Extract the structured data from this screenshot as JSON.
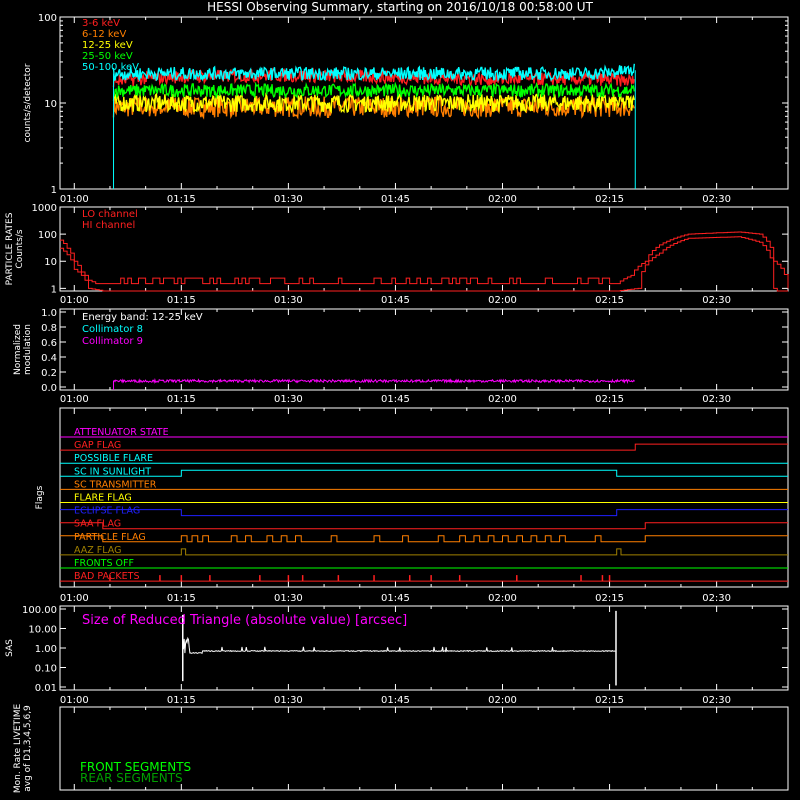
{
  "title": "HESSI Observing Summary, starting on 2016/10/18 00:58:00 UT",
  "time_ticks": [
    "01:00",
    "01:15",
    "01:30",
    "01:45",
    "02:00",
    "02:15",
    "02:30"
  ],
  "colors": {
    "background": "#000000",
    "axes": "#ffffff",
    "e3_6": "#ff2020",
    "e6_12": "#ff7f00",
    "e12_25": "#ffff00",
    "e25_50": "#00ff00",
    "e50_100": "#00ffff",
    "lo_channel": "#ff2020",
    "hi_channel": "#ff2020",
    "coll8": "#00ffff",
    "coll9": "#ff00ff",
    "sas": "#ffffff",
    "front": "#00ff00",
    "rear": "#00a000"
  },
  "panels": {
    "counts": {
      "ylabel": "counts/s/detector",
      "yticks": [
        "1",
        "10",
        "100"
      ],
      "legend": [
        "3-6 keV",
        "6-12 keV",
        "12-25 keV",
        "25-50 keV",
        "50-100 keV"
      ]
    },
    "particle": {
      "ylabel1": "PARTICLE RATES",
      "ylabel2": "Counts/s",
      "yticks": [
        "1",
        "10",
        "100",
        "1000"
      ],
      "legend": [
        "LO channel",
        "HI channel"
      ]
    },
    "modulation": {
      "ylabel1": "Normalized",
      "ylabel2": "modulation",
      "yticks": [
        "0.0",
        "0.2",
        "0.4",
        "0.6",
        "0.8",
        "1.0"
      ],
      "legend": [
        "Energy band: 12-25 keV",
        "Collimator 8",
        "Collimator 9"
      ]
    },
    "flags": {
      "ylabel": "Flags",
      "labels": [
        "ATTENUATOR STATE",
        "GAP FLAG",
        "POSSIBLE FLARE",
        "SC IN SUNLIGHT",
        "SC TRANSMITTER",
        "FLARE FLAG",
        "ECLIPSE FLAG",
        "SAA FLAG",
        "PARTICLE FLAG",
        "AAZ FLAG",
        "FRONTS OFF",
        "BAD PACKETS"
      ],
      "label_colors": [
        "#ff00ff",
        "#ff2020",
        "#00ffff",
        "#00ffff",
        "#ff7f00",
        "#ffff00",
        "#2020ff",
        "#ff2020",
        "#ff7f00",
        "#a08000",
        "#00ff00",
        "#ff2020"
      ]
    },
    "sas": {
      "ylabel": "SAS",
      "yticks": [
        "0.01",
        "0.10",
        "1.00",
        "10.00",
        "100.00"
      ],
      "legend": "Size of Reduced Triangle (absolute value) [arcsec]"
    },
    "livetime": {
      "ylabel1": "Mon. Rate LIVETIME",
      "ylabel2": "avg of D1,3,4,5,6,9",
      "legend": [
        "FRONT SEGMENTS",
        "REAR SEGMENTS"
      ]
    }
  },
  "chart_data": [
    {
      "type": "line",
      "title": "HESSI Observing Summary, starting on 2016/10/18 00:58:00 UT",
      "xlabel": "",
      "ylabel": "counts/s/detector",
      "y_scale": "log",
      "ylim": [
        1,
        100
      ],
      "x_range_min": [
        0,
        102
      ],
      "series": [
        {
          "name": "3-6 keV",
          "x": [
            7.5,
            15,
            30,
            45,
            60,
            75,
            80.5
          ],
          "values": [
            18,
            20,
            21,
            20,
            19,
            19,
            18
          ]
        },
        {
          "name": "6-12 keV",
          "x": [
            7.5,
            15,
            30,
            45,
            60,
            75,
            80.5
          ],
          "values": [
            9,
            9,
            9,
            9,
            9,
            9,
            9
          ]
        },
        {
          "name": "12-25 keV",
          "x": [
            7.5,
            15,
            30,
            45,
            60,
            75,
            80.5
          ],
          "values": [
            10,
            10,
            10,
            10,
            10,
            10,
            10
          ]
        },
        {
          "name": "25-50 keV",
          "x": [
            7.5,
            15,
            30,
            45,
            60,
            75,
            80.5
          ],
          "values": [
            14,
            14,
            14,
            14,
            14,
            14,
            14
          ]
        },
        {
          "name": "50-100 keV",
          "x": [
            7.5,
            15,
            30,
            45,
            60,
            75,
            80.5
          ],
          "values": [
            22,
            22,
            22,
            22,
            22,
            22,
            24
          ]
        }
      ]
    },
    {
      "type": "line",
      "ylabel": "PARTICLE RATES Counts/s",
      "y_scale": "log",
      "ylim": [
        0.8,
        1000
      ],
      "series": [
        {
          "name": "LO channel",
          "x": [
            0,
            1,
            2,
            3,
            4,
            5,
            6,
            78,
            80,
            82,
            84,
            88,
            95,
            98,
            100,
            102
          ],
          "values": [
            60,
            30,
            10,
            4,
            2,
            1.5,
            1.5,
            1.5,
            3,
            10,
            40,
            100,
            120,
            100,
            10,
            1
          ]
        },
        {
          "name": "HI channel",
          "x": [
            0,
            2,
            4,
            6,
            78,
            81,
            84,
            88,
            95,
            98,
            100
          ],
          "values": [
            30,
            5,
            1,
            0.8,
            0.8,
            1,
            20,
            70,
            80,
            50,
            1
          ]
        }
      ]
    },
    {
      "type": "line",
      "ylabel": "Normalized modulation",
      "ylim": [
        0,
        1
      ],
      "series": [
        {
          "name": "Collimator 9",
          "x": [
            7.5,
            20,
            40,
            60,
            80.5
          ],
          "values": [
            0.08,
            0.08,
            0.08,
            0.08,
            0.08
          ]
        }
      ]
    },
    {
      "type": "line",
      "ylabel": "SAS",
      "y_scale": "log",
      "ylim": [
        0.01,
        100
      ],
      "series": [
        {
          "name": "Size of Reduced Triangle (absolute value) [arcsec]",
          "x": [
            17,
            18,
            20,
            30,
            45,
            60,
            75,
            78
          ],
          "values": [
            10,
            0.5,
            0.6,
            0.7,
            0.7,
            0.7,
            0.7,
            10
          ]
        }
      ]
    }
  ]
}
